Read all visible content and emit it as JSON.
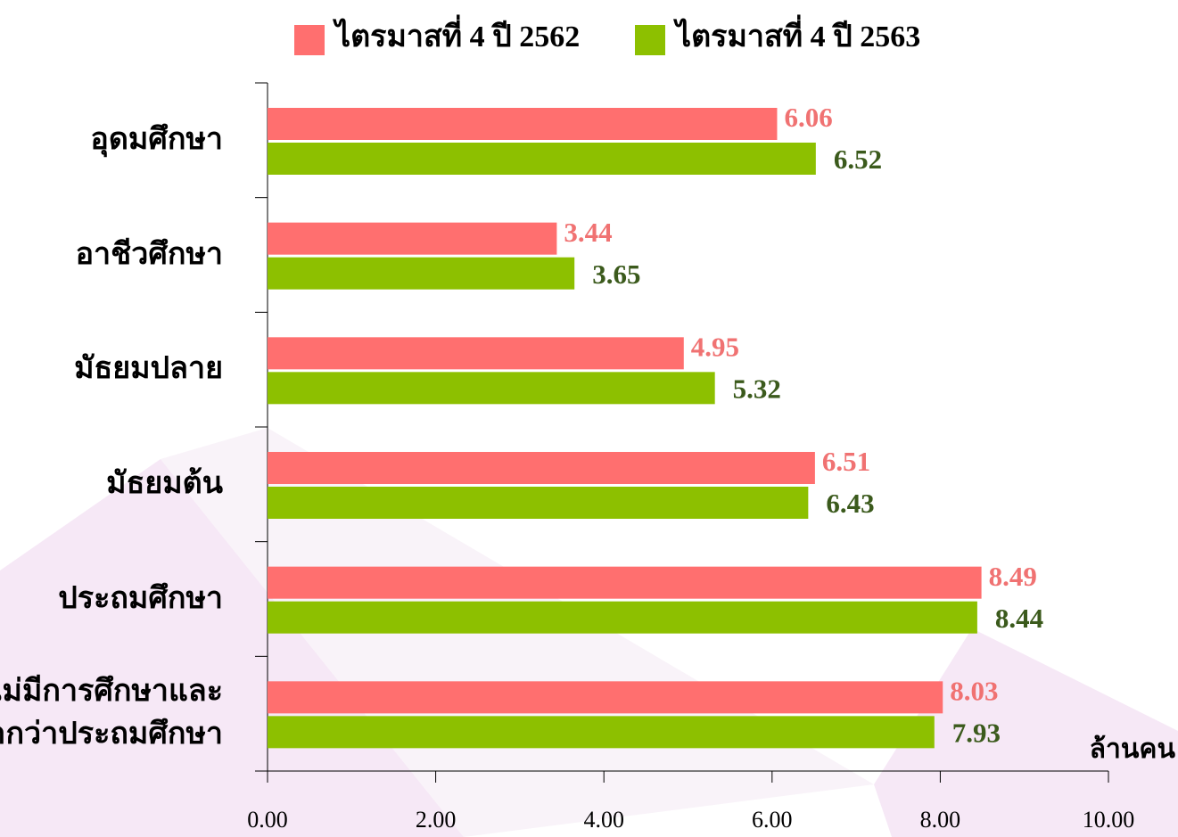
{
  "chart_data": {
    "type": "hbar",
    "categories": [
      "อุดมศึกษา",
      "อาชีวศึกษา",
      "มัธยมปลาย",
      "มัธยมต้น",
      "ประถมศึกษา",
      "ไม่มีการศึกษาและ\nต่ำกว่าประถมศึกษา"
    ],
    "series": [
      {
        "name": "ไตรมาสที่ 4 ปี 2562",
        "color": "#ff6f6f",
        "label_color": "#f07272",
        "values": [
          6.06,
          3.44,
          4.95,
          6.51,
          8.49,
          8.03
        ]
      },
      {
        "name": "ไตรมาสที่ 4 ปี 2563",
        "color": "#8dc000",
        "label_color": "#3b5a1c",
        "values": [
          6.52,
          3.65,
          5.32,
          6.43,
          8.44,
          7.93
        ]
      }
    ],
    "x_label": "ล้านคน",
    "xlim": [
      0,
      10
    ],
    "xticks": [
      {
        "value": 0,
        "label": "0.00"
      },
      {
        "value": 2,
        "label": "2.00"
      },
      {
        "value": 4,
        "label": "4.00"
      },
      {
        "value": 6,
        "label": "6.00"
      },
      {
        "value": 8,
        "label": "8.00"
      },
      {
        "value": 10,
        "label": "10.00"
      }
    ],
    "legend": "top"
  }
}
